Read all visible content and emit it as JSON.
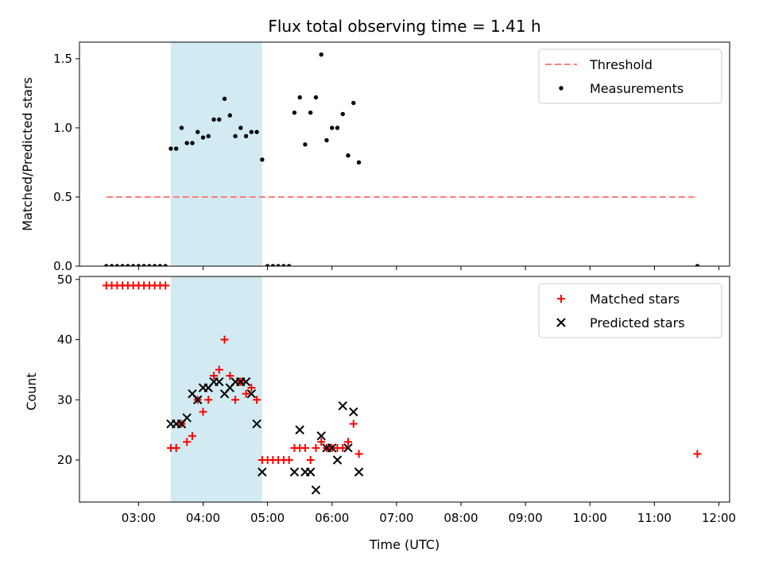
{
  "chart_data": [
    {
      "type": "scatter",
      "title": "Flux total observing time = 1.41 h",
      "xlabel": "",
      "ylabel": "Matched/Predicted stars",
      "xlim": [
        "02:05",
        "12:10"
      ],
      "ylim": [
        0,
        1.62
      ],
      "yticks": [
        0.0,
        0.5,
        1.0,
        1.5
      ],
      "ytick_labels": [
        "0.0",
        "0.5",
        "1.0",
        "1.5"
      ],
      "xticks": [
        "03:00",
        "04:00",
        "05:00",
        "06:00",
        "07:00",
        "08:00",
        "09:00",
        "10:00",
        "11:00",
        "12:00"
      ],
      "shaded_span": {
        "x0": "03:30",
        "x1": "04:55",
        "color": "#add8e6"
      },
      "legend_position": "upper right",
      "series": [
        {
          "name": "Threshold",
          "kind": "dashed-line",
          "color": "#ff7f7f",
          "x": [
            "02:30",
            "11:40"
          ],
          "y": [
            0.5,
            0.5
          ]
        },
        {
          "name": "Measurements",
          "kind": "points",
          "color": "#000000",
          "x": [
            "02:30",
            "02:35",
            "02:40",
            "02:45",
            "02:50",
            "02:55",
            "03:00",
            "03:05",
            "03:10",
            "03:15",
            "03:20",
            "03:25",
            "03:30",
            "03:35",
            "03:40",
            "03:45",
            "03:50",
            "03:55",
            "04:00",
            "04:05",
            "04:10",
            "04:15",
            "04:20",
            "04:25",
            "04:30",
            "04:35",
            "04:40",
            "04:45",
            "04:50",
            "04:55",
            "05:00",
            "05:05",
            "05:10",
            "05:15",
            "05:20",
            "05:25",
            "05:30",
            "05:35",
            "05:40",
            "05:45",
            "05:50",
            "05:55",
            "06:00",
            "06:05",
            "06:10",
            "06:15",
            "06:20",
            "06:25",
            "11:40"
          ],
          "y": [
            0,
            0,
            0,
            0,
            0,
            0,
            0,
            0,
            0,
            0,
            0,
            0,
            0.85,
            0.85,
            1.0,
            0.89,
            0.89,
            0.97,
            0.93,
            0.94,
            1.06,
            1.06,
            1.21,
            1.09,
            0.94,
            1.0,
            0.94,
            0.97,
            0.97,
            0.77,
            0,
            0,
            0,
            0,
            0,
            1.11,
            1.22,
            0.88,
            1.11,
            1.22,
            1.53,
            0.91,
            1.0,
            1.0,
            1.1,
            0.8,
            1.18,
            0.75,
            0
          ]
        }
      ]
    },
    {
      "type": "scatter",
      "title": "",
      "xlabel": "Time (UTC)",
      "ylabel": "Count",
      "xlim": [
        "02:05",
        "12:10"
      ],
      "ylim": [
        13,
        50.5
      ],
      "yticks": [
        20,
        30,
        40,
        50
      ],
      "ytick_labels": [
        "20",
        "30",
        "40",
        "50"
      ],
      "xticks": [
        "03:00",
        "04:00",
        "05:00",
        "06:00",
        "07:00",
        "08:00",
        "09:00",
        "10:00",
        "11:00",
        "12:00"
      ],
      "shaded_span": {
        "x0": "03:30",
        "x1": "04:55",
        "color": "#add8e6"
      },
      "legend_position": "upper right",
      "series": [
        {
          "name": "Matched stars",
          "marker": "plus",
          "color": "#ff0000",
          "x": [
            "02:30",
            "02:35",
            "02:40",
            "02:45",
            "02:50",
            "02:55",
            "03:00",
            "03:05",
            "03:10",
            "03:15",
            "03:20",
            "03:25",
            "03:30",
            "03:35",
            "03:40",
            "03:45",
            "03:50",
            "03:55",
            "04:00",
            "04:05",
            "04:10",
            "04:15",
            "04:20",
            "04:25",
            "04:30",
            "04:35",
            "04:40",
            "04:45",
            "04:50",
            "04:55",
            "05:00",
            "05:05",
            "05:10",
            "05:15",
            "05:20",
            "05:25",
            "05:30",
            "05:35",
            "05:40",
            "05:45",
            "05:50",
            "05:55",
            "06:00",
            "06:05",
            "06:10",
            "06:15",
            "06:20",
            "06:25",
            "11:40"
          ],
          "y": [
            49,
            49,
            49,
            49,
            49,
            49,
            49,
            49,
            49,
            49,
            49,
            49,
            22,
            22,
            26,
            23,
            24,
            30,
            28,
            30,
            34,
            35,
            40,
            34,
            30,
            33,
            31,
            32,
            30,
            20,
            20,
            20,
            20,
            20,
            20,
            22,
            22,
            22,
            20,
            22,
            23,
            22,
            22,
            22,
            22,
            23,
            26,
            21,
            21
          ]
        },
        {
          "name": "Predicted stars",
          "marker": "x",
          "color": "#000000",
          "x": [
            "03:30",
            "03:35",
            "03:40",
            "03:45",
            "03:50",
            "03:55",
            "04:00",
            "04:05",
            "04:10",
            "04:15",
            "04:20",
            "04:25",
            "04:30",
            "04:35",
            "04:40",
            "04:45",
            "04:50",
            "04:55",
            "05:25",
            "05:30",
            "05:35",
            "05:40",
            "05:45",
            "05:50",
            "05:55",
            "06:00",
            "06:05",
            "06:10",
            "06:15",
            "06:20",
            "06:25"
          ],
          "y": [
            26,
            26,
            26,
            27,
            31,
            30,
            32,
            32,
            33,
            33,
            31,
            32,
            33,
            33,
            33,
            31,
            26,
            18,
            18,
            25,
            18,
            18,
            15,
            24,
            22,
            22,
            20,
            29,
            22,
            28,
            18
          ]
        }
      ]
    }
  ]
}
